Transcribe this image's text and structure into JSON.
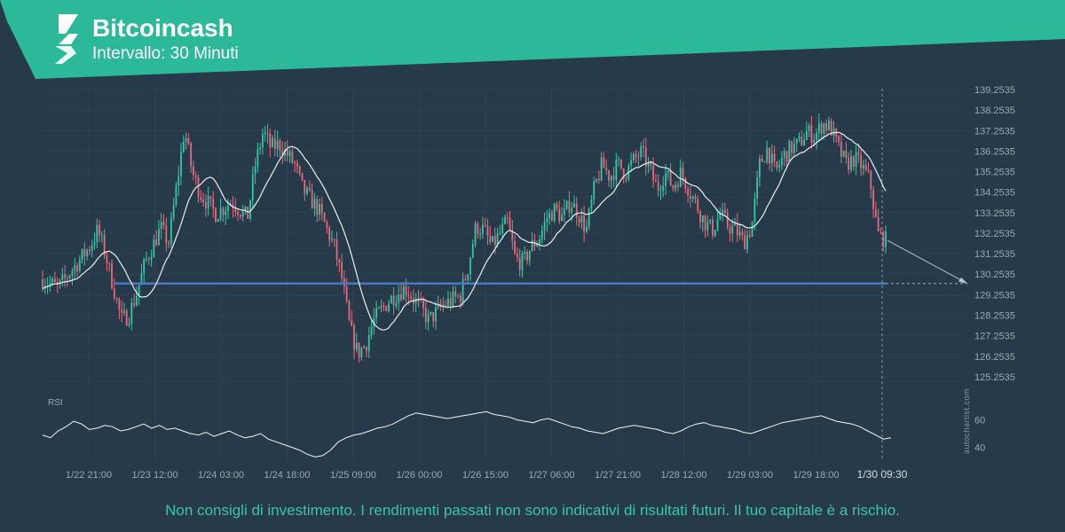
{
  "header": {
    "title": "Bitcoincash",
    "subtitle": "Intervallo: 30 Minuti"
  },
  "footer": {
    "disclaimer": "Non consigli di investimento. I rendimenti passati non sono indicativi di risultati futuri. Il tuo capitale è a rischio."
  },
  "watermark": "autochartist.com",
  "colors": {
    "background": "#263a49",
    "banner": "#2cb99a",
    "up_candle": "#37c6a6",
    "down_candle": "#e86a7a",
    "support_line": "#4a78c4",
    "moving_average": "#e9eef1",
    "rsi_line": "#f3f5f7",
    "disclaimer": "#37c6a6"
  },
  "icons": {
    "logo": "autochartist-logo-icon"
  },
  "chart_data": [
    {
      "type": "candlestick",
      "title": "",
      "x_tick_labels": [
        "1/22 21:00",
        "1/23 12:00",
        "1/24 03:00",
        "1/24 18:00",
        "1/25 09:00",
        "1/26 00:00",
        "1/26 15:00",
        "1/27 06:00",
        "1/27 21:00",
        "1/28 12:00",
        "1/29 03:00",
        "1/29 18:00"
      ],
      "current_time_label": "1/30 09:30",
      "y_ticks": [
        125.2535,
        126.2535,
        127.2535,
        128.2535,
        129.2535,
        130.2535,
        131.2535,
        132.2535,
        133.2535,
        134.2535,
        135.2535,
        136.2535,
        137.2535,
        138.2535,
        139.2535
      ],
      "ylim": [
        124.6,
        139.3
      ],
      "series_overlays": [
        "moving-average"
      ],
      "support_level": 129.8,
      "projection": {
        "from": 131.9,
        "to": 129.8
      },
      "price_path": [
        [
          0,
          130.0
        ],
        [
          2,
          129.6
        ],
        [
          4,
          130.6
        ],
        [
          6,
          131.6
        ],
        [
          7,
          132.4
        ],
        [
          8,
          131.2
        ],
        [
          9,
          129.6
        ],
        [
          10,
          128.0
        ],
        [
          11,
          128.3
        ],
        [
          12,
          129.4
        ],
        [
          13,
          130.8
        ],
        [
          15,
          132.5
        ],
        [
          16,
          131.8
        ],
        [
          17,
          134.5
        ],
        [
          18,
          137.3
        ],
        [
          19,
          135.2
        ],
        [
          20,
          134.2
        ],
        [
          22,
          133.2
        ],
        [
          24,
          133.8
        ],
        [
          25,
          133.4
        ],
        [
          26,
          133.0
        ],
        [
          27,
          135.6
        ],
        [
          28,
          137.2
        ],
        [
          29,
          136.4
        ],
        [
          30,
          136.6
        ],
        [
          32,
          135.6
        ],
        [
          33,
          134.4
        ],
        [
          35,
          133.4
        ],
        [
          36,
          132.5
        ],
        [
          37,
          131.6
        ],
        [
          38,
          130.0
        ],
        [
          39,
          127.6
        ],
        [
          40,
          126.4
        ],
        [
          41,
          126.8
        ],
        [
          42,
          128.0
        ],
        [
          44,
          129.0
        ],
        [
          46,
          129.6
        ],
        [
          48,
          128.6
        ],
        [
          49,
          128.0
        ],
        [
          51,
          128.8
        ],
        [
          53,
          129.2
        ],
        [
          54,
          130.6
        ],
        [
          55,
          132.6
        ],
        [
          56,
          132.4
        ],
        [
          57,
          131.6
        ],
        [
          58,
          132.2
        ],
        [
          59,
          132.8
        ],
        [
          60,
          131.0
        ],
        [
          61,
          130.8
        ],
        [
          62,
          131.6
        ],
        [
          63,
          132.0
        ],
        [
          64,
          133.0
        ],
        [
          65,
          133.4
        ],
        [
          66,
          133.0
        ],
        [
          67,
          133.8
        ],
        [
          68,
          133.2
        ],
        [
          69,
          132.4
        ],
        [
          70,
          134.4
        ],
        [
          71,
          135.6
        ],
        [
          72,
          135.0
        ],
        [
          73,
          135.6
        ],
        [
          74,
          135.2
        ],
        [
          75,
          135.8
        ],
        [
          76,
          136.2
        ],
        [
          77,
          135.4
        ],
        [
          78,
          134.4
        ],
        [
          79,
          135.2
        ],
        [
          80,
          134.5
        ],
        [
          81,
          135.2
        ],
        [
          82,
          134.4
        ],
        [
          83,
          133.6
        ],
        [
          84,
          132.8
        ],
        [
          85,
          132.4
        ],
        [
          86,
          133.2
        ],
        [
          87,
          132.6
        ],
        [
          88,
          132.4
        ],
        [
          89,
          131.8
        ],
        [
          90,
          132.6
        ],
        [
          91,
          135.6
        ],
        [
          92,
          136.4
        ],
        [
          93,
          135.2
        ],
        [
          94,
          136.0
        ],
        [
          95,
          136.4
        ],
        [
          96,
          136.6
        ],
        [
          97,
          137.2
        ],
        [
          98,
          137.0
        ],
        [
          99,
          137.6
        ],
        [
          100,
          137.4
        ],
        [
          101,
          136.4
        ],
        [
          102,
          135.6
        ],
        [
          103,
          135.9
        ],
        [
          104,
          135.5
        ],
        [
          105,
          134.8
        ],
        [
          106,
          132.2
        ],
        [
          107,
          131.9
        ]
      ]
    },
    {
      "type": "line",
      "title": "RSI",
      "y_ticks": [
        40,
        60
      ],
      "ylim": [
        30,
        72
      ],
      "values": [
        49,
        47,
        52,
        55,
        59,
        57,
        53,
        54,
        56,
        55,
        52,
        53,
        55,
        57,
        54,
        56,
        53,
        54,
        52,
        50,
        49,
        51,
        48,
        50,
        52,
        49,
        47,
        48,
        50,
        46,
        44,
        42,
        40,
        38,
        35,
        33,
        34,
        38,
        44,
        47,
        49,
        50,
        52,
        54,
        55,
        57,
        60,
        63,
        65,
        64,
        63,
        62,
        61,
        62,
        63,
        64,
        65,
        66,
        64,
        63,
        62,
        60,
        59,
        58,
        60,
        61,
        59,
        57,
        55,
        54,
        52,
        51,
        50,
        52,
        54,
        55,
        56,
        55,
        54,
        53,
        51,
        50,
        52,
        55,
        57,
        58,
        56,
        55,
        54,
        53,
        51,
        50,
        52,
        54,
        56,
        58,
        59,
        60,
        61,
        62,
        63,
        61,
        59,
        58,
        57,
        55,
        52,
        49,
        46,
        47
      ]
    }
  ]
}
